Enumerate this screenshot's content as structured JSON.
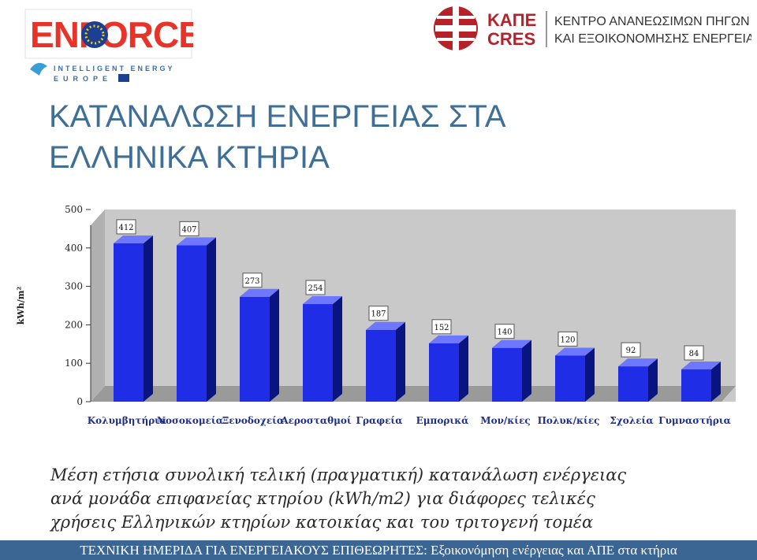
{
  "header": {
    "enforce_logo_text": "ENFORCE",
    "ie_line1": "INTELLIGENT ENERGY",
    "ie_line2": "EUROPE",
    "cres_gr": "ΚΑΠΕ",
    "cres_en": "CRES",
    "cres_line1": "ΚΕΝΤΡΟ ΑΝΑΝΕΩΣΙΜΩΝ ΠΗΓΩΝ",
    "cres_line2": "ΚΑΙ ΕΞΟΙΚΟΝΟΜΗΣΗΣ ΕΝΕΡΓΕΙΑΣ"
  },
  "title": {
    "line1": "ΚΑΤΑΝΑΛΩΣΗ ΕΝΕΡΓΕΙΑΣ ΣΤΑ",
    "line2": "ΕΛΛΗΝΙΚΑ ΚΤΗΡΙΑ"
  },
  "chart_data": {
    "type": "bar",
    "categories": [
      "Κολυμβητήρια",
      "Νοσοκομεία",
      "Ξενοδοχεία",
      "Αεροσταθμοί",
      "Γραφεία",
      "Εμπορικά",
      "Μον/κίες",
      "Πολυκ/κίες",
      "Σχολεία",
      "Γυμναστήρια"
    ],
    "values": [
      412,
      407,
      273,
      254,
      187,
      152,
      140,
      120,
      92,
      84
    ],
    "ylabel": "kWh/m²",
    "ylim": [
      0,
      500
    ],
    "yticks": [
      0,
      100,
      200,
      300,
      400,
      500
    ],
    "grid": false,
    "legend": "none",
    "colors": {
      "bar_front": "#1f2ee6",
      "bar_side": "#0a1480",
      "bar_top": "#6d77ff",
      "wall": "#c9c9c9",
      "floor": "#9a9a9a"
    }
  },
  "caption": {
    "line1": "Μέση ετήσια συνολική τελική (πραγματική) κατανάλωση ενέργειας",
    "line2": "ανά μονάδα επιφανείας κτηρίου (kWh/m2) για διάφορες τελικές",
    "line3": "χρήσεις Ελληνικών κτηρίων κατοικίας και του τριτογενή τομέα"
  },
  "footer": {
    "text": "ΤΕΧΝΙΚΗ ΗΜΕΡΙΔΑ ΓΙΑ ΕΝΕΡΓΕΙΑΚΟΥΣ ΕΠΙΘΕΩΡΗΤΕΣ: Εξοικονόμηση ενέργειας και ΑΠΕ στα κτήρια"
  },
  "colors": {
    "title": "#3f6f97",
    "footer_bg": "#3b6593"
  }
}
